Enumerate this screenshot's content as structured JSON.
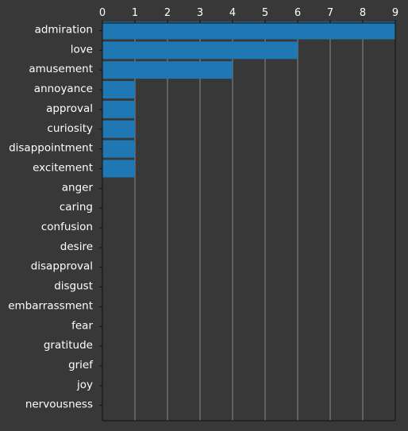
{
  "chart_data": {
    "type": "bar",
    "orientation": "horizontal",
    "title": "",
    "xlabel": "",
    "ylabel": "",
    "categories": [
      "admiration",
      "love",
      "amusement",
      "annoyance",
      "approval",
      "curiosity",
      "disappointment",
      "excitement",
      "anger",
      "caring",
      "confusion",
      "desire",
      "disapproval",
      "disgust",
      "embarrassment",
      "fear",
      "gratitude",
      "grief",
      "joy",
      "nervousness"
    ],
    "values": [
      9,
      6,
      4,
      1,
      1,
      1,
      1,
      1,
      0,
      0,
      0,
      0,
      0,
      0,
      0,
      0,
      0,
      0,
      0,
      0
    ],
    "x_ticks": [
      "0",
      "1",
      "2",
      "3",
      "4",
      "5",
      "6",
      "7",
      "8",
      "9"
    ],
    "xlim": [
      0,
      9
    ],
    "x_axis_position": "top",
    "grid": "vertical",
    "legend": "none"
  },
  "colors": {
    "background": "#383838",
    "bar": "#1f77b4",
    "text": "#ffffff",
    "grid": "#8a8a8a",
    "axis": "#111111"
  }
}
